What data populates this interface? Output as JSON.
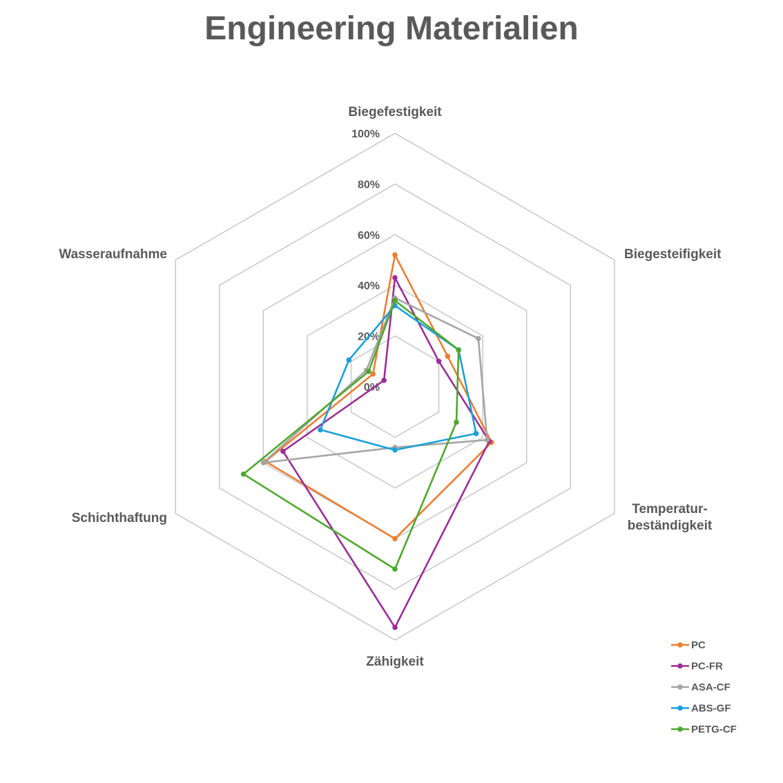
{
  "chart_data": {
    "type": "radar",
    "title": "Engineering Materialien",
    "axes": [
      "Biegefestigkeit",
      "Biegesteifigkeit",
      "Temperatur-\nbeständigkeit",
      "Zähigkeit",
      "Schichthaftung",
      "Wasseraufnahme"
    ],
    "range": [
      0,
      100
    ],
    "unit": "%",
    "tick_labels": [
      "0%",
      "20%",
      "40%",
      "60%",
      "80%",
      "100%"
    ],
    "grid": true,
    "legend_position": "bottom-right",
    "series": [
      {
        "name": "PC",
        "color": "#ED7D31",
        "values": [
          52,
          24,
          44,
          60,
          59,
          10
        ]
      },
      {
        "name": "PC-FR",
        "color": "#9B2D96",
        "values": [
          43,
          20,
          43,
          95,
          51,
          5
        ]
      },
      {
        "name": "ASA-CF",
        "color": "#A5A5A5",
        "values": [
          35,
          38,
          42,
          24,
          60,
          13
        ]
      },
      {
        "name": "ABS-GF",
        "color": "#1AA0D8",
        "values": [
          32,
          29,
          37,
          25,
          34,
          21
        ]
      },
      {
        "name": "PETG-CF",
        "color": "#4EA72E",
        "values": [
          34,
          29,
          28,
          72,
          69,
          12
        ]
      }
    ]
  }
}
